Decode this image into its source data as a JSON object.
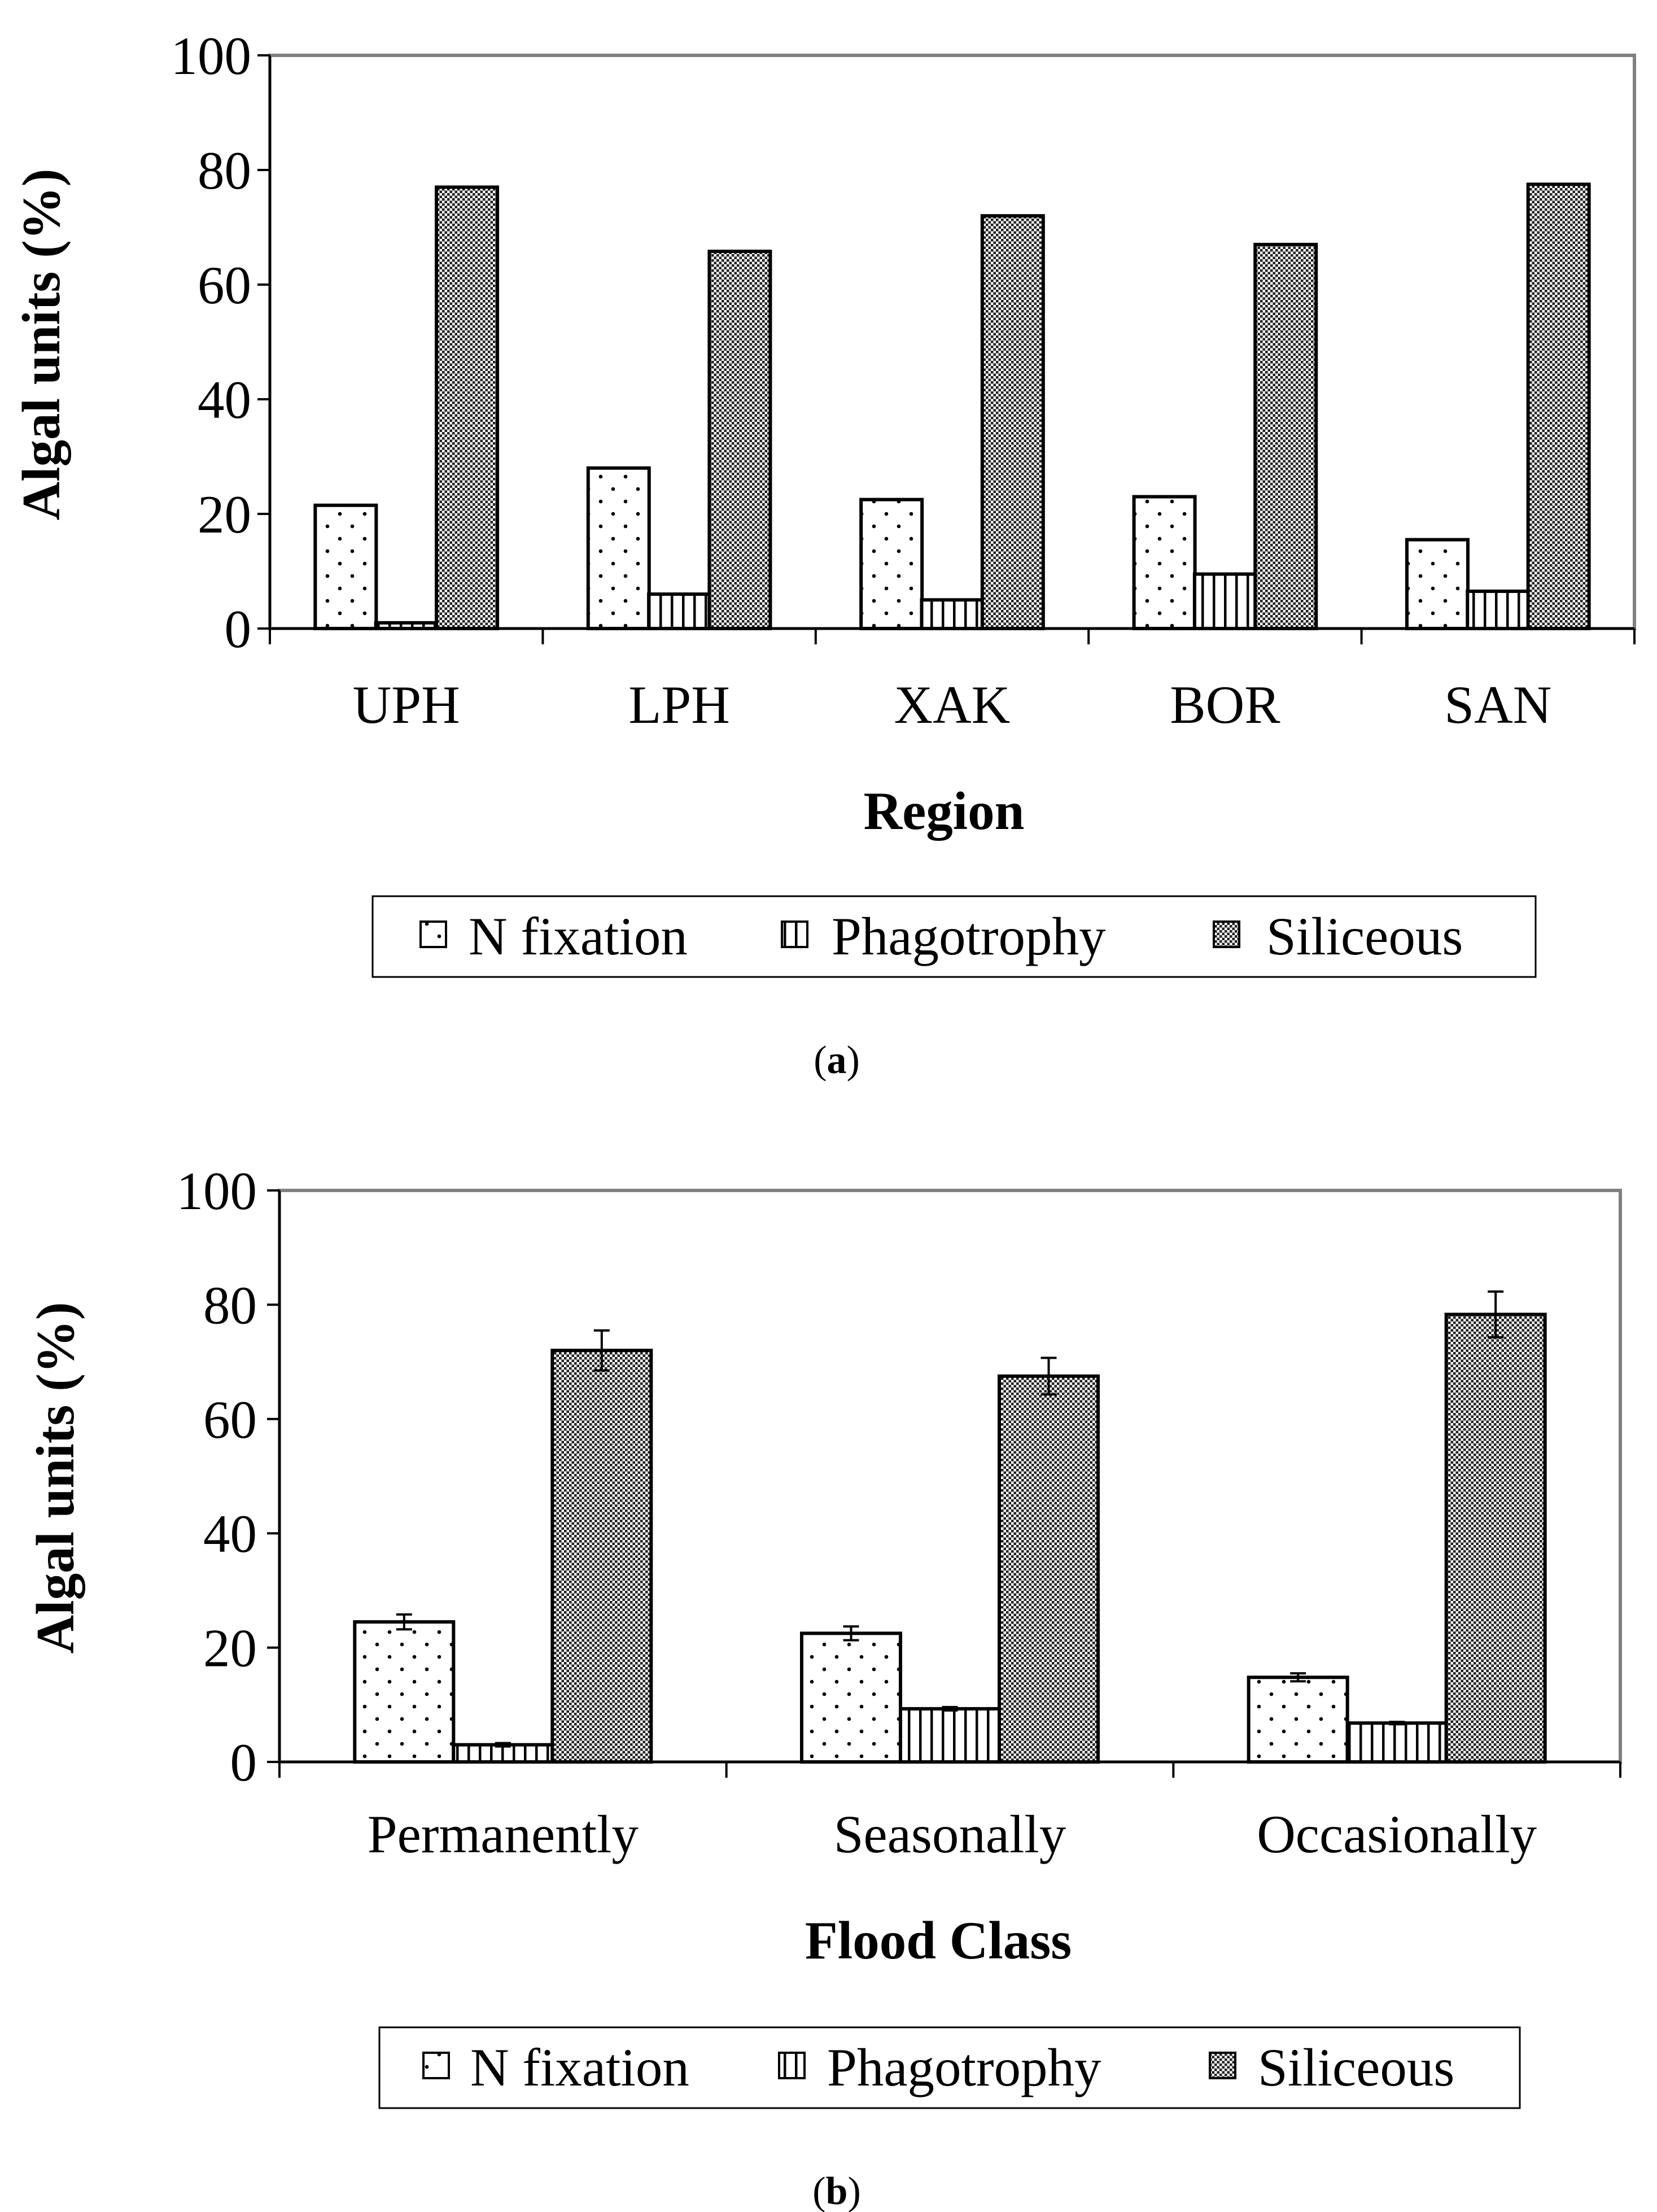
{
  "chart_data": [
    {
      "type": "bar",
      "panel": "a",
      "xlabel": "Region",
      "ylabel": "Algal units (%)",
      "ylim": [
        0,
        100
      ],
      "yticks": [
        0,
        20,
        40,
        60,
        80,
        100
      ],
      "categories": [
        "UPH",
        "LPH",
        "XAK",
        "BOR",
        "SAN"
      ],
      "error_bars": false,
      "series": [
        {
          "name": "N fixation",
          "pattern": "dots",
          "values": [
            21.5,
            28,
            22.5,
            23,
            15.5
          ]
        },
        {
          "name": "Phagotrophy",
          "pattern": "vlines",
          "values": [
            1,
            6,
            5,
            9.5,
            6.5
          ]
        },
        {
          "name": "Siliceous",
          "pattern": "dense",
          "values": [
            77,
            65.8,
            72,
            67,
            77.5
          ]
        }
      ],
      "legend": [
        "N fixation",
        "Phagotrophy",
        "Siliceous"
      ],
      "legend_position": "bottom"
    },
    {
      "type": "bar",
      "panel": "b",
      "xlabel": "Flood Class",
      "ylabel": "Algal units (%)",
      "ylim": [
        0,
        100
      ],
      "yticks": [
        0,
        20,
        40,
        60,
        80,
        100
      ],
      "categories": [
        "Permanently",
        "Seasonally",
        "Occasionally"
      ],
      "error_bars": true,
      "series": [
        {
          "name": "N fixation",
          "pattern": "dots",
          "values": [
            24.5,
            22.5,
            14.8
          ],
          "errors": [
            1.3,
            1.2,
            0.7
          ]
        },
        {
          "name": "Phagotrophy",
          "pattern": "vlines",
          "values": [
            3,
            9.3,
            6.8
          ],
          "errors": [
            0.3,
            0.3,
            0.2
          ]
        },
        {
          "name": "Siliceous",
          "pattern": "dense",
          "values": [
            72,
            67.5,
            78.3
          ],
          "errors": [
            3.5,
            3.2,
            4
          ]
        }
      ],
      "legend": [
        "N fixation",
        "Phagotrophy",
        "Siliceous"
      ],
      "legend_position": "bottom"
    }
  ],
  "captions": {
    "a": {
      "open": "(",
      "letter": "a",
      "close": ")"
    },
    "b": {
      "open": "(",
      "letter": "b",
      "close": ")"
    }
  }
}
